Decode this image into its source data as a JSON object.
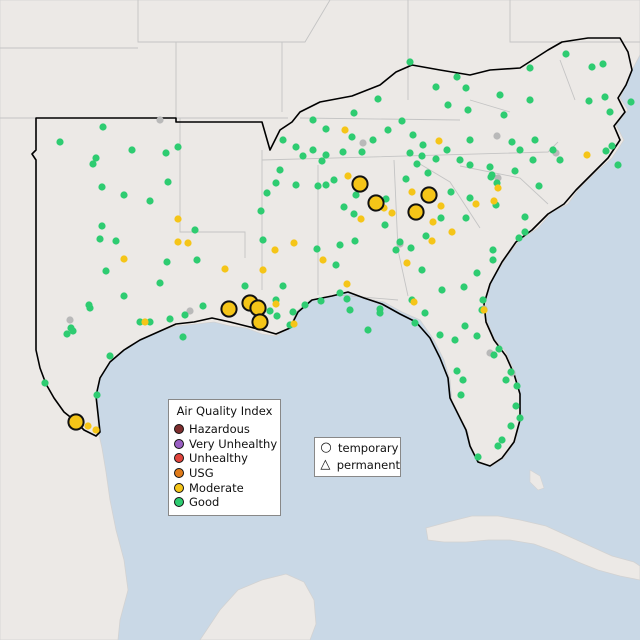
{
  "legend": {
    "title": "Air Quality Index",
    "categories": [
      {
        "label": "Hazardous",
        "color": "#7e2e2e"
      },
      {
        "label": "Very Unhealthy",
        "color": "#9a5fc3"
      },
      {
        "label": "Unhealthy",
        "color": "#e0443c"
      },
      {
        "label": "USG",
        "color": "#e07b1a"
      },
      {
        "label": "Moderate",
        "color": "#f5c518"
      },
      {
        "label": "Good",
        "color": "#2ecc71"
      }
    ]
  },
  "type_legend": {
    "items": [
      {
        "label": "temporary",
        "icon": "circle-icon"
      },
      {
        "label": "permanent",
        "icon": "triangle-icon"
      }
    ]
  },
  "colors": {
    "water": "#c9d8e6",
    "land": "#ece9e6",
    "border": "#c4c4c4",
    "region_outline": "#000000",
    "good": "#2ecc71",
    "moderate": "#f5c518",
    "grey_station": "#b9b9b9"
  },
  "stations": {
    "good": [
      [
        60,
        142
      ],
      [
        103,
        127
      ],
      [
        132,
        150
      ],
      [
        96,
        158
      ],
      [
        93,
        164
      ],
      [
        166,
        153
      ],
      [
        178,
        147
      ],
      [
        102,
        187
      ],
      [
        124,
        195
      ],
      [
        150,
        201
      ],
      [
        168,
        182
      ],
      [
        102,
        226
      ],
      [
        100,
        239
      ],
      [
        116,
        241
      ],
      [
        124,
        296
      ],
      [
        106,
        271
      ],
      [
        89,
        305
      ],
      [
        90,
        308
      ],
      [
        71,
        328
      ],
      [
        67,
        334
      ],
      [
        73,
        331
      ],
      [
        150,
        322
      ],
      [
        140,
        322
      ],
      [
        170,
        319
      ],
      [
        185,
        315
      ],
      [
        203,
        306
      ],
      [
        283,
        140
      ],
      [
        313,
        120
      ],
      [
        354,
        113
      ],
      [
        378,
        99
      ],
      [
        410,
        62
      ],
      [
        436,
        87
      ],
      [
        457,
        77
      ],
      [
        448,
        105
      ],
      [
        466,
        88
      ],
      [
        500,
        95
      ],
      [
        530,
        68
      ],
      [
        566,
        54
      ],
      [
        592,
        67
      ],
      [
        603,
        64
      ],
      [
        589,
        101
      ],
      [
        605,
        97
      ],
      [
        610,
        112
      ],
      [
        631,
        102
      ],
      [
        612,
        146
      ],
      [
        618,
        165
      ],
      [
        606,
        151
      ],
      [
        530,
        100
      ],
      [
        504,
        115
      ],
      [
        468,
        110
      ],
      [
        402,
        121
      ],
      [
        388,
        130
      ],
      [
        373,
        140
      ],
      [
        352,
        137
      ],
      [
        313,
        150
      ],
      [
        303,
        156
      ],
      [
        296,
        147
      ],
      [
        322,
        161
      ],
      [
        343,
        152
      ],
      [
        326,
        129
      ],
      [
        413,
        135
      ],
      [
        410,
        153
      ],
      [
        422,
        156
      ],
      [
        423,
        145
      ],
      [
        417,
        164
      ],
      [
        447,
        150
      ],
      [
        470,
        140
      ],
      [
        460,
        160
      ],
      [
        490,
        167
      ],
      [
        520,
        150
      ],
      [
        535,
        140
      ],
      [
        512,
        142
      ],
      [
        553,
        150
      ],
      [
        560,
        160
      ],
      [
        497,
        183
      ],
      [
        533,
        160
      ],
      [
        515,
        171
      ],
      [
        492,
        175
      ],
      [
        470,
        165
      ],
      [
        436,
        159
      ],
      [
        406,
        179
      ],
      [
        470,
        198
      ],
      [
        466,
        218
      ],
      [
        491,
        177
      ],
      [
        496,
        205
      ],
      [
        525,
        217
      ],
      [
        539,
        186
      ],
      [
        525,
        232
      ],
      [
        519,
        238
      ],
      [
        493,
        260
      ],
      [
        477,
        273
      ],
      [
        464,
        287
      ],
      [
        483,
        300
      ],
      [
        482,
        310
      ],
      [
        477,
        336
      ],
      [
        494,
        355
      ],
      [
        499,
        349
      ],
      [
        511,
        372
      ],
      [
        506,
        380
      ],
      [
        517,
        386
      ],
      [
        516,
        406
      ],
      [
        520,
        418
      ],
      [
        511,
        426
      ],
      [
        502,
        440
      ],
      [
        498,
        446
      ],
      [
        478,
        457
      ],
      [
        461,
        395
      ],
      [
        463,
        380
      ],
      [
        457,
        371
      ],
      [
        455,
        340
      ],
      [
        465,
        326
      ],
      [
        440,
        335
      ],
      [
        415,
        323
      ],
      [
        412,
        300
      ],
      [
        380,
        313
      ],
      [
        340,
        293
      ],
      [
        347,
        299
      ],
      [
        350,
        310
      ],
      [
        368,
        330
      ],
      [
        380,
        309
      ],
      [
        336,
        265
      ],
      [
        340,
        245
      ],
      [
        317,
        249
      ],
      [
        321,
        301
      ],
      [
        305,
        305
      ],
      [
        293,
        312
      ],
      [
        290,
        325
      ],
      [
        283,
        286
      ],
      [
        276,
        300
      ],
      [
        277,
        316
      ],
      [
        270,
        311
      ],
      [
        263,
        240
      ],
      [
        261,
        211
      ],
      [
        276,
        183
      ],
      [
        280,
        170
      ],
      [
        296,
        185
      ],
      [
        267,
        193
      ],
      [
        245,
        286
      ],
      [
        355,
        241
      ],
      [
        354,
        214
      ],
      [
        356,
        195
      ],
      [
        326,
        185
      ],
      [
        334,
        180
      ],
      [
        386,
        199
      ],
      [
        385,
        225
      ],
      [
        396,
        250
      ],
      [
        411,
        248
      ],
      [
        422,
        270
      ],
      [
        442,
        290
      ],
      [
        425,
        313
      ],
      [
        97,
        395
      ],
      [
        45,
        383
      ],
      [
        110,
        356
      ],
      [
        160,
        283
      ],
      [
        167,
        262
      ],
      [
        195,
        230
      ],
      [
        197,
        260
      ],
      [
        428,
        173
      ],
      [
        451,
        192
      ],
      [
        441,
        218
      ],
      [
        426,
        236
      ],
      [
        493,
        250
      ],
      [
        183,
        337
      ],
      [
        400,
        242
      ],
      [
        344,
        207
      ],
      [
        362,
        152
      ],
      [
        326,
        155
      ],
      [
        318,
        186
      ]
    ],
    "moderate": [
      [
        96,
        430
      ],
      [
        88,
        426
      ],
      [
        178,
        219
      ],
      [
        178,
        242
      ],
      [
        188,
        243
      ],
      [
        124,
        259
      ],
      [
        145,
        322
      ],
      [
        275,
        250
      ],
      [
        294,
        243
      ],
      [
        347,
        284
      ],
      [
        414,
        302
      ],
      [
        432,
        241
      ],
      [
        452,
        232
      ],
      [
        433,
        222
      ],
      [
        476,
        204
      ],
      [
        494,
        201
      ],
      [
        441,
        206
      ],
      [
        412,
        192
      ],
      [
        361,
        219
      ],
      [
        348,
        176
      ],
      [
        384,
        208
      ],
      [
        392,
        213
      ],
      [
        345,
        130
      ],
      [
        407,
        263
      ],
      [
        439,
        141
      ],
      [
        587,
        155
      ],
      [
        498,
        188
      ],
      [
        484,
        310
      ],
      [
        323,
        260
      ],
      [
        276,
        304
      ],
      [
        247,
        304
      ],
      [
        294,
        324
      ],
      [
        225,
        269
      ],
      [
        263,
        270
      ]
    ],
    "grey": [
      [
        160,
        120
      ],
      [
        70,
        320
      ],
      [
        190,
        311
      ],
      [
        363,
        143
      ],
      [
        497,
        136
      ],
      [
        498,
        178
      ],
      [
        556,
        153
      ],
      [
        400,
        244
      ],
      [
        484,
        309
      ],
      [
        490,
        353
      ],
      [
        512,
        373
      ]
    ],
    "large_moderate": [
      [
        76,
        422
      ],
      [
        229,
        309
      ],
      [
        250,
        303
      ],
      [
        258,
        308
      ],
      [
        260,
        322
      ],
      [
        360,
        184
      ],
      [
        376,
        203
      ],
      [
        416,
        212
      ],
      [
        429,
        195
      ]
    ]
  }
}
